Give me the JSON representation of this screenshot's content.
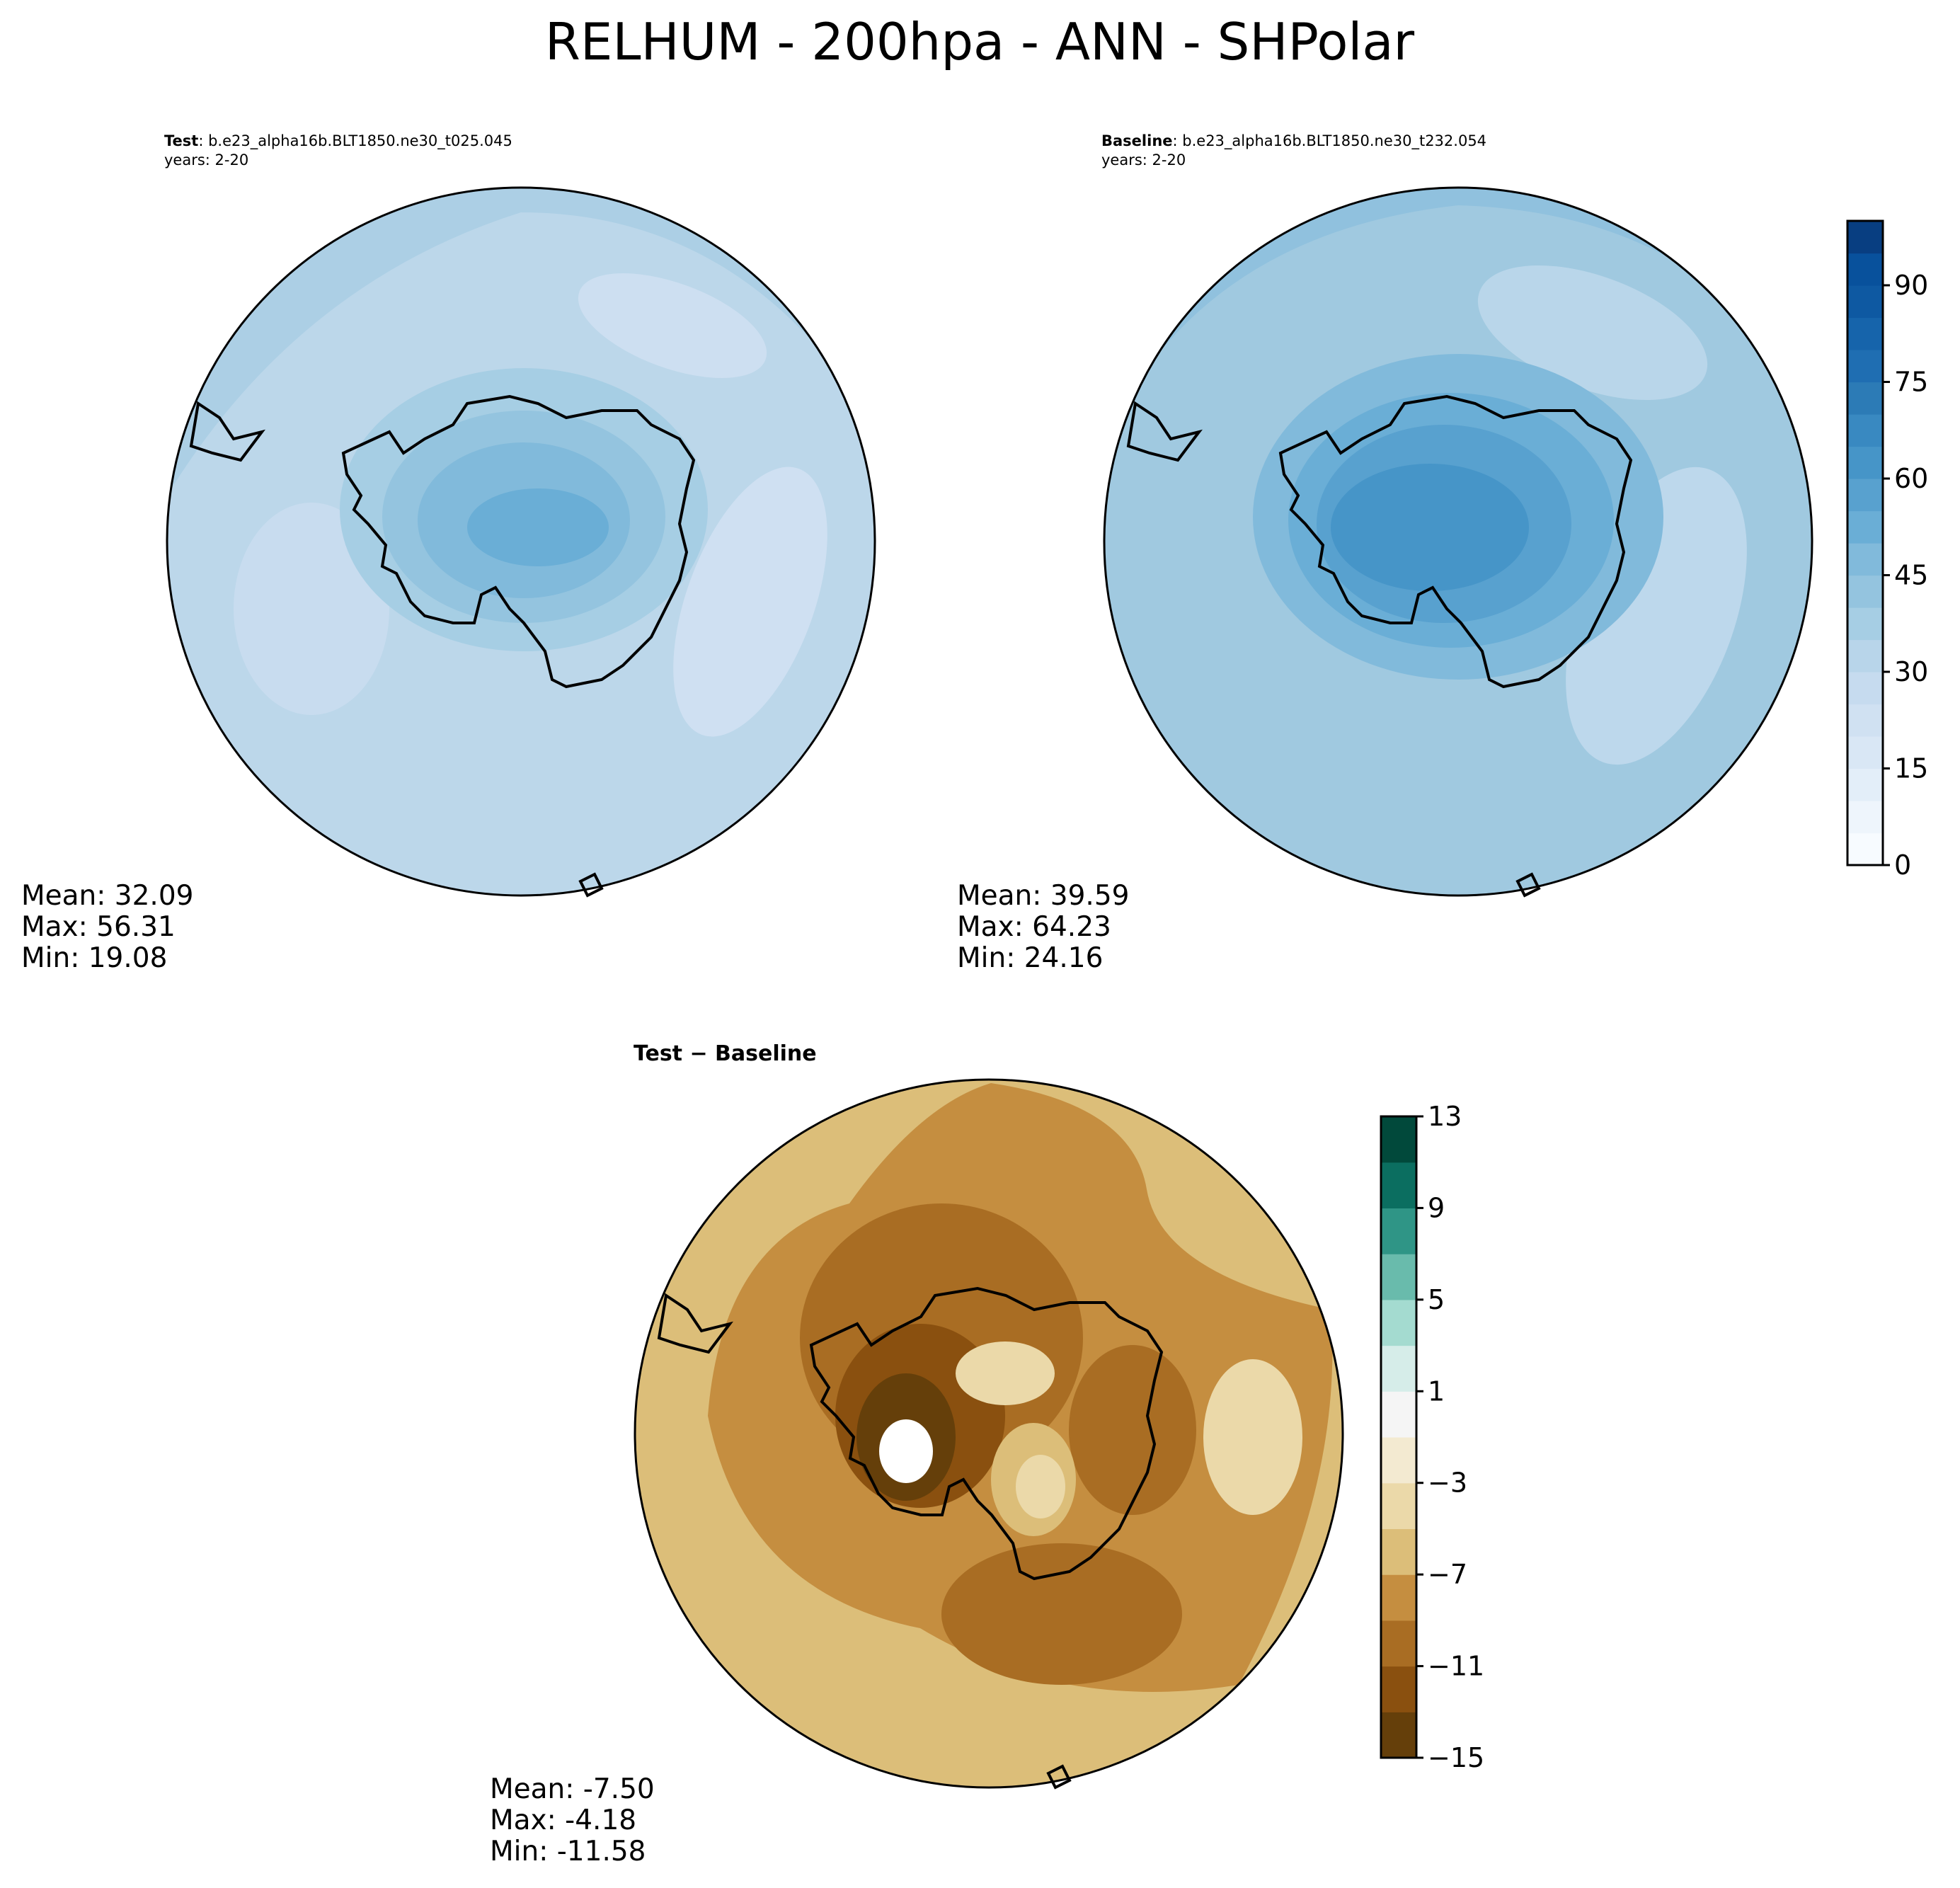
{
  "title": "RELHUM - 200hpa - ANN - SHPolar",
  "panels": [
    {
      "id": "test",
      "label_bold": "Test",
      "label_rest": ": b.e23_alpha16b.BLT1850.ne30_t025.045",
      "years": "years: 2-20",
      "stats": {
        "mean": "Mean: 32.09",
        "max": "Max: 56.31",
        "min": "Min: 19.08"
      }
    },
    {
      "id": "baseline",
      "label_bold": "Baseline",
      "label_rest": ": b.e23_alpha16b.BLT1850.ne30_t232.054",
      "years": "years: 2-20",
      "stats": {
        "mean": "Mean: 39.59",
        "max": "Max: 64.23",
        "min": "Min: 24.16"
      }
    },
    {
      "id": "diff",
      "label_bold": "Test − Baseline",
      "label_rest": "",
      "years": "",
      "stats": {
        "mean": "Mean: -7.50",
        "max": "Max: -4.18",
        "min": "Min: -11.58"
      }
    }
  ],
  "chart_data": [
    {
      "type": "contourf-polar-map",
      "panel": "Test",
      "region": "Southern Hemisphere polar stereographic",
      "variable": "RELHUM",
      "level": "200hpa",
      "season": "ANN",
      "mean": 32.09,
      "max": 56.31,
      "min": 19.08,
      "rings_outside_in": [
        30,
        30,
        35,
        40,
        45,
        50,
        55
      ],
      "colorbar": "Blues"
    },
    {
      "type": "contourf-polar-map",
      "panel": "Baseline",
      "region": "Southern Hemisphere polar stereographic",
      "variable": "RELHUM",
      "level": "200hpa",
      "season": "ANN",
      "mean": 39.59,
      "max": 64.23,
      "min": 24.16,
      "rings_outside_in": [
        40,
        40,
        45,
        50,
        55,
        60,
        60
      ],
      "colorbar": "Blues"
    },
    {
      "type": "contourf-polar-map",
      "panel": "Test − Baseline",
      "region": "Southern Hemisphere polar stereographic",
      "mean": -7.5,
      "max": -4.18,
      "min": -11.58,
      "rings_outside_in": [
        -6,
        -8,
        -8,
        -10,
        -12,
        -14
      ],
      "colorbar": "BrBG"
    }
  ],
  "colorbar_main": {
    "vmin": 0,
    "vmax": 100,
    "step": 5,
    "ticks": [
      "0",
      "15",
      "30",
      "45",
      "60",
      "75",
      "90"
    ],
    "tick_values": [
      0,
      15,
      30,
      45,
      60,
      75,
      90
    ],
    "colors": [
      "#f7fbff",
      "#eef5fc",
      "#e3eef9",
      "#d9e7f5",
      "#d0e1f2",
      "#c6dbef",
      "#b8d5ea",
      "#a6cee4",
      "#94c4df",
      "#81badb",
      "#6aaed6",
      "#58a1cf",
      "#4695c8",
      "#3989c1",
      "#2c7bb6",
      "#1f6eb2",
      "#1664ab",
      "#0e59a2",
      "#08519c",
      "#083e81"
    ]
  },
  "colorbar_diff": {
    "vmin": -15,
    "vmax": 13,
    "step": 2,
    "ticks": [
      "13",
      "9",
      "5",
      "1",
      "−3",
      "−7",
      "−11",
      "−15"
    ],
    "tick_values": [
      13,
      9,
      5,
      1,
      -3,
      -7,
      -11,
      -15
    ],
    "colors": [
      "#653f0a",
      "#8a500f",
      "#a96d23",
      "#c58e40",
      "#dcbe79",
      "#ebd9a9",
      "#f3ead1",
      "#f5f5f5",
      "#d6ede9",
      "#a4dbd0",
      "#69bbac",
      "#2f9586",
      "#0b6e60",
      "#01493b"
    ]
  }
}
